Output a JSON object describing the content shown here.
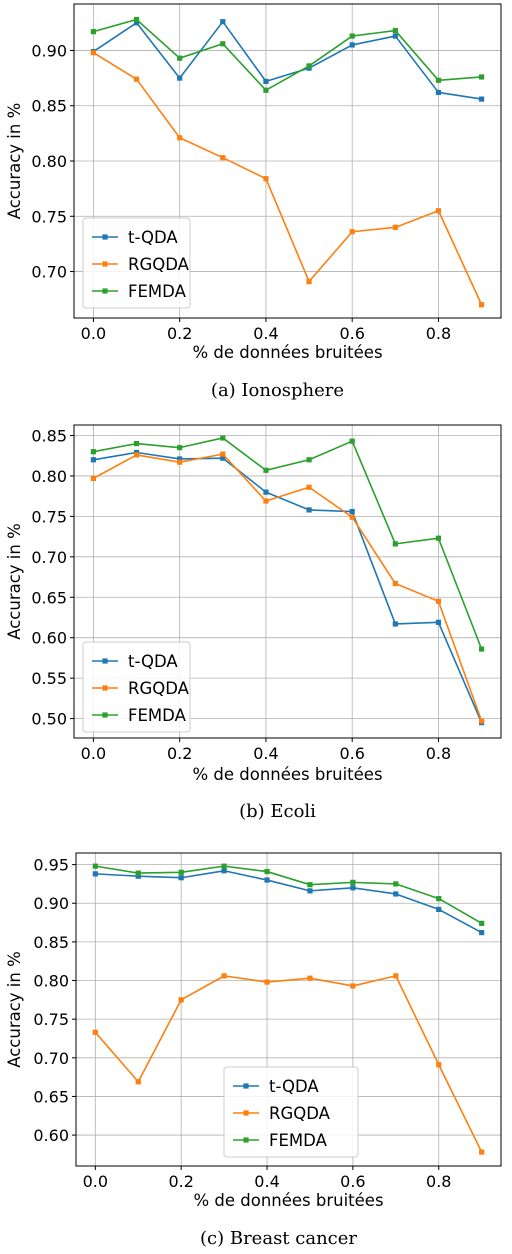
{
  "colors": {
    "t-QDA": "#1f77b4",
    "RGQDA": "#ff7f0e",
    "FEMDA": "#2ca02c",
    "grid": "#b0b0b0"
  },
  "chart_data": [
    {
      "type": "line",
      "caption": "(a) Ionosphere",
      "xlabel": "% de données bruitées",
      "ylabel": "Accuracy in %",
      "x": [
        0.0,
        0.1,
        0.2,
        0.3,
        0.4,
        0.5,
        0.6,
        0.7,
        0.8,
        0.9
      ],
      "xlim": [
        -0.045,
        0.945
      ],
      "ylim": [
        0.658,
        0.942
      ],
      "xticks": [
        0.0,
        0.2,
        0.4,
        0.6,
        0.8
      ],
      "xtick_labels": [
        "0.0",
        "0.2",
        "0.4",
        "0.6",
        "0.8"
      ],
      "yticks": [
        0.7,
        0.75,
        0.8,
        0.85,
        0.9
      ],
      "ytick_labels": [
        "0.70",
        "0.75",
        "0.80",
        "0.85",
        "0.90"
      ],
      "grid": true,
      "legend": "lower-left",
      "series": [
        {
          "name": "t-QDA",
          "values": [
            0.899,
            0.925,
            0.875,
            0.926,
            0.872,
            0.884,
            0.905,
            0.913,
            0.862,
            0.856
          ]
        },
        {
          "name": "RGQDA",
          "values": [
            0.898,
            0.874,
            0.821,
            0.803,
            0.784,
            0.691,
            0.736,
            0.74,
            0.755,
            0.67
          ]
        },
        {
          "name": "FEMDA",
          "values": [
            0.917,
            0.928,
            0.893,
            0.906,
            0.864,
            0.886,
            0.913,
            0.918,
            0.873,
            0.876
          ]
        }
      ]
    },
    {
      "type": "line",
      "caption": "(b) Ecoli",
      "xlabel": "% de données bruitées",
      "ylabel": "Accuracy in %",
      "x": [
        0.0,
        0.1,
        0.2,
        0.3,
        0.4,
        0.5,
        0.6,
        0.7,
        0.8,
        0.9
      ],
      "xlim": [
        -0.045,
        0.945
      ],
      "ylim": [
        0.476,
        0.863
      ],
      "xticks": [
        0.0,
        0.2,
        0.4,
        0.6,
        0.8
      ],
      "xtick_labels": [
        "0.0",
        "0.2",
        "0.4",
        "0.6",
        "0.8"
      ],
      "yticks": [
        0.5,
        0.55,
        0.6,
        0.65,
        0.7,
        0.75,
        0.8,
        0.85
      ],
      "ytick_labels": [
        "0.50",
        "0.55",
        "0.60",
        "0.65",
        "0.70",
        "0.75",
        "0.80",
        "0.85"
      ],
      "grid": true,
      "legend": "lower-left",
      "series": [
        {
          "name": "t-QDA",
          "values": [
            0.82,
            0.829,
            0.821,
            0.822,
            0.78,
            0.758,
            0.756,
            0.617,
            0.619,
            0.495
          ]
        },
        {
          "name": "RGQDA",
          "values": [
            0.797,
            0.826,
            0.817,
            0.827,
            0.769,
            0.786,
            0.749,
            0.667,
            0.645,
            0.497
          ]
        },
        {
          "name": "FEMDA",
          "values": [
            0.83,
            0.84,
            0.835,
            0.847,
            0.807,
            0.82,
            0.843,
            0.716,
            0.723,
            0.586
          ]
        }
      ]
    },
    {
      "type": "line",
      "caption": "(c) Breast cancer",
      "xlabel": "% de données bruitées",
      "ylabel": "Accuracy in %",
      "x": [
        0.0,
        0.1,
        0.2,
        0.3,
        0.4,
        0.5,
        0.6,
        0.7,
        0.8,
        0.9
      ],
      "xlim": [
        -0.045,
        0.945
      ],
      "ylim": [
        0.56,
        0.965
      ],
      "xticks": [
        0.0,
        0.2,
        0.4,
        0.6,
        0.8
      ],
      "xtick_labels": [
        "0.0",
        "0.2",
        "0.4",
        "0.6",
        "0.8"
      ],
      "yticks": [
        0.6,
        0.65,
        0.7,
        0.75,
        0.8,
        0.85,
        0.9,
        0.95
      ],
      "ytick_labels": [
        "0.60",
        "0.65",
        "0.70",
        "0.75",
        "0.80",
        "0.85",
        "0.90",
        "0.95"
      ],
      "grid": true,
      "legend": "lower-center",
      "series": [
        {
          "name": "t-QDA",
          "values": [
            0.938,
            0.935,
            0.933,
            0.942,
            0.93,
            0.916,
            0.92,
            0.912,
            0.892,
            0.862
          ]
        },
        {
          "name": "RGQDA",
          "values": [
            0.733,
            0.669,
            0.775,
            0.806,
            0.798,
            0.803,
            0.793,
            0.806,
            0.691,
            0.578
          ]
        },
        {
          "name": "FEMDA",
          "values": [
            0.948,
            0.939,
            0.94,
            0.948,
            0.941,
            0.924,
            0.927,
            0.925,
            0.906,
            0.874
          ]
        }
      ]
    }
  ]
}
